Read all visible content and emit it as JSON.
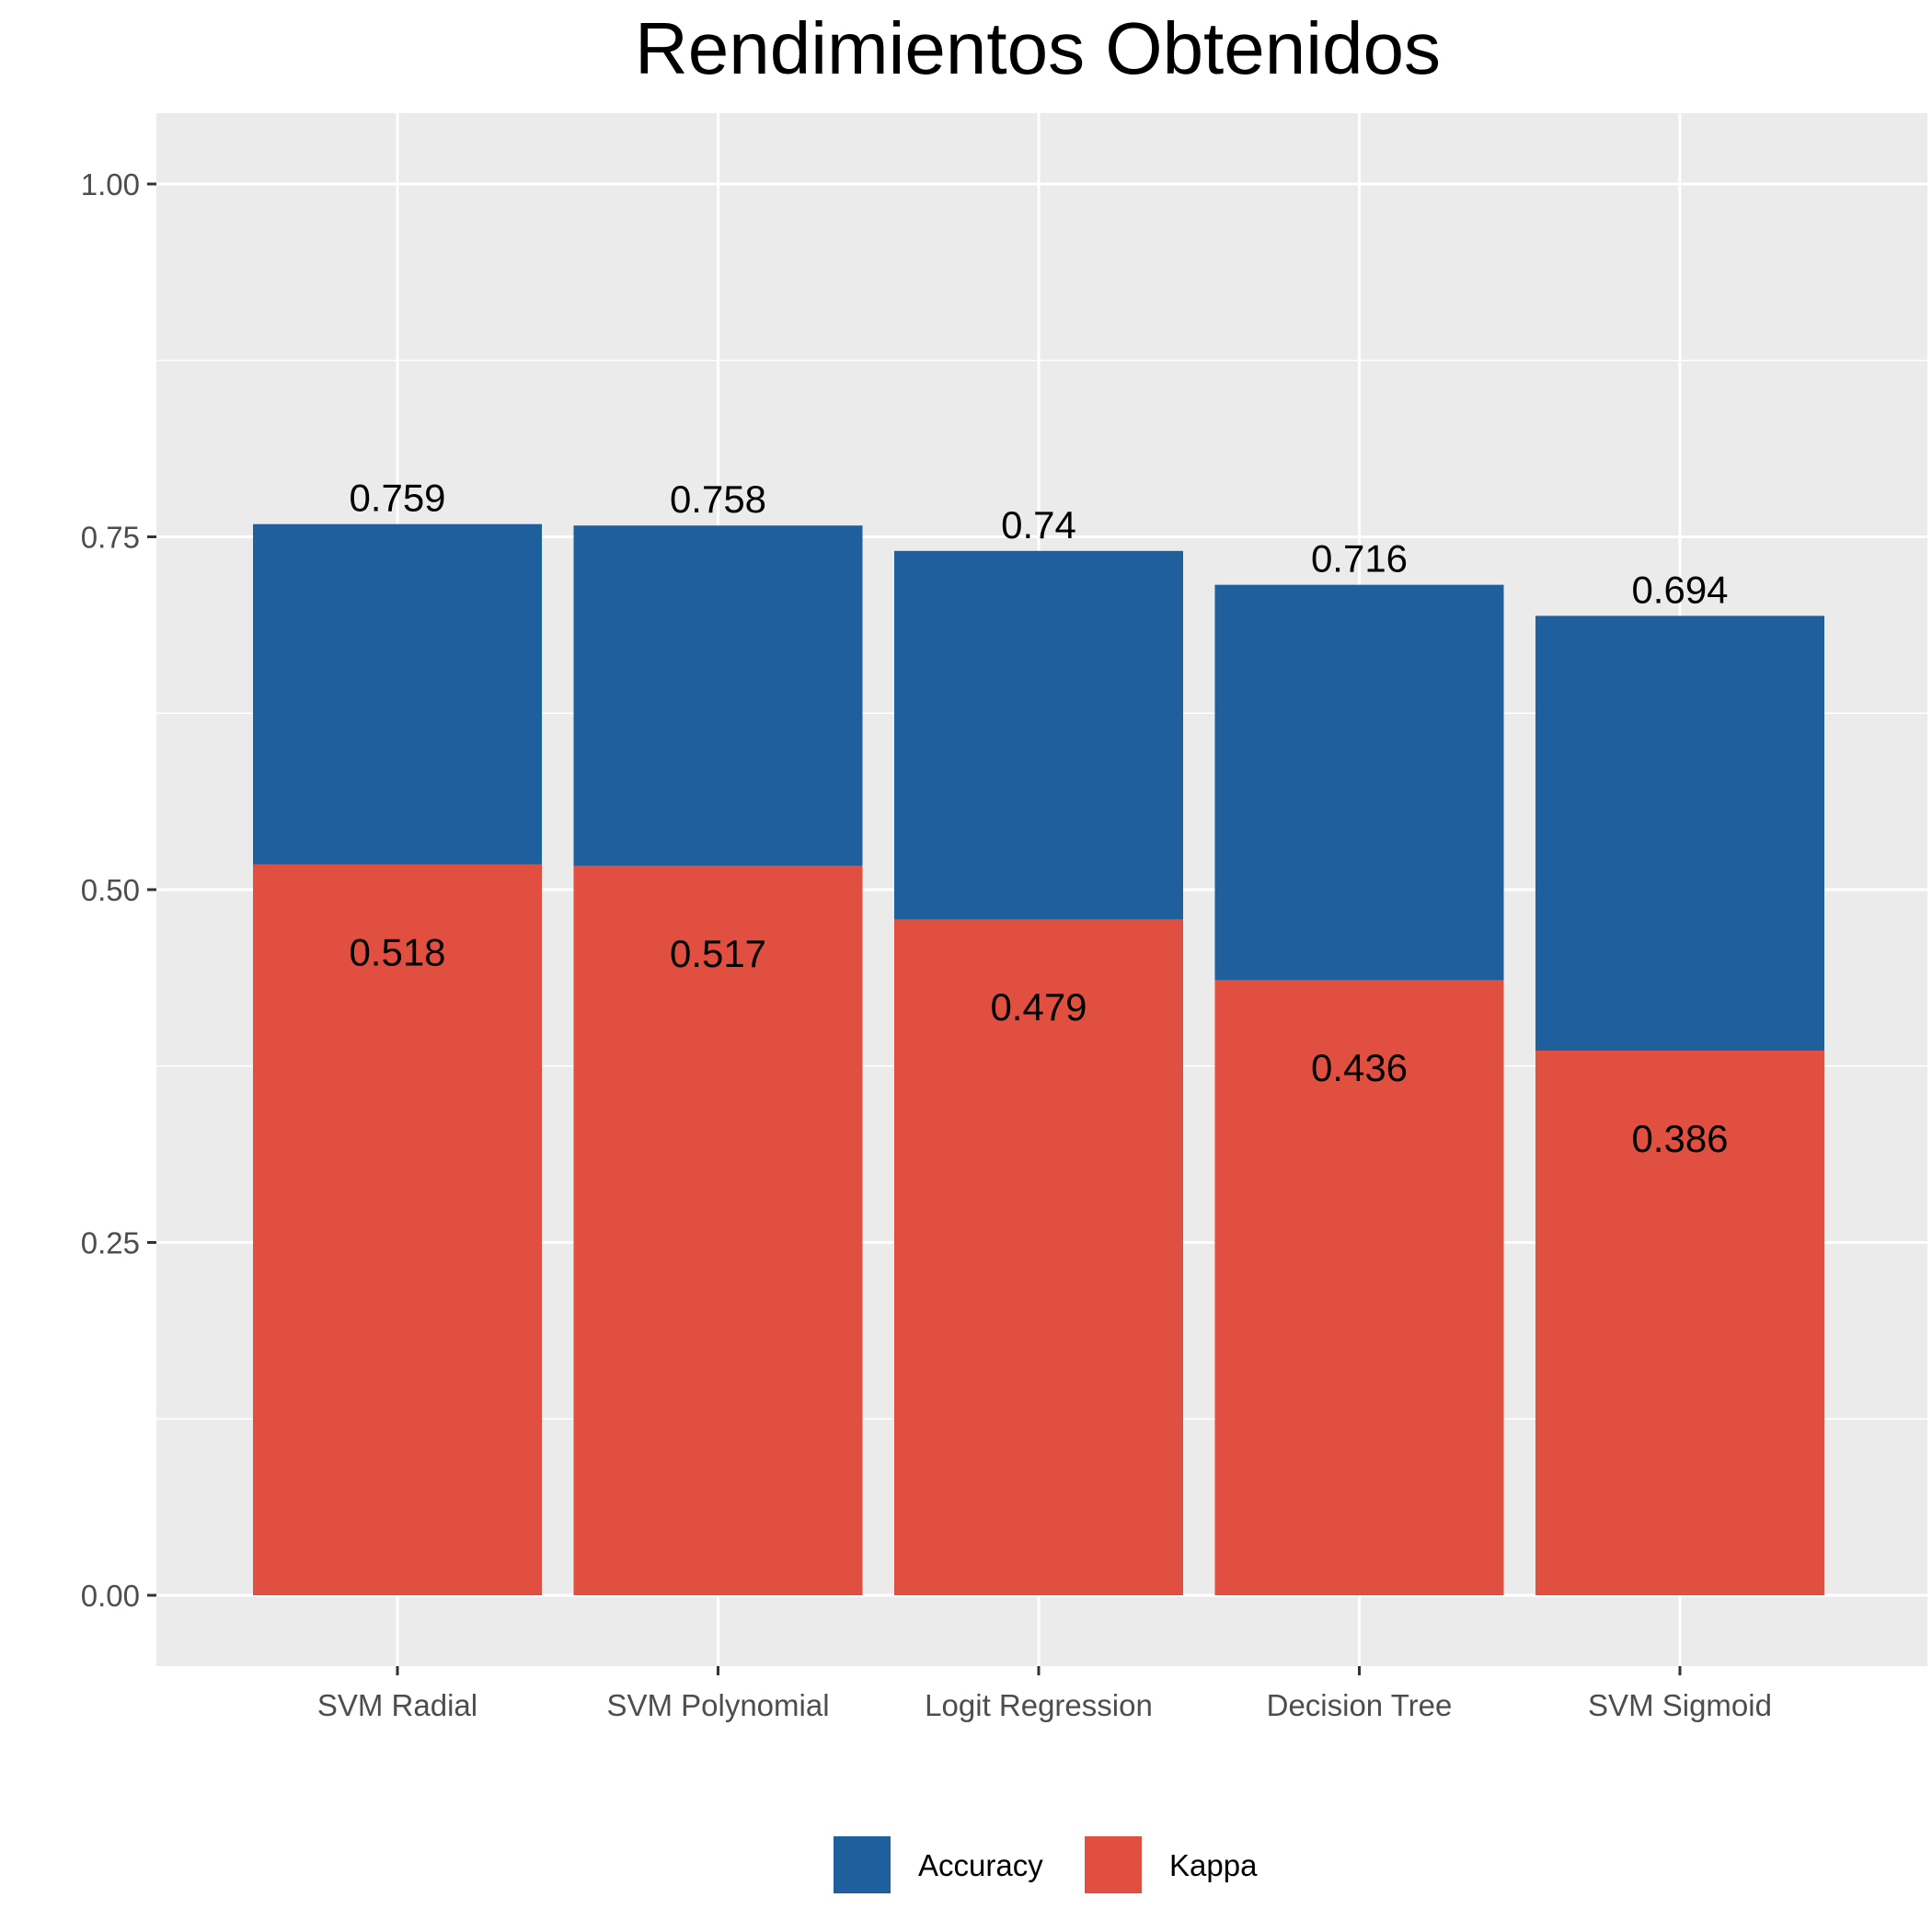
{
  "chart_data": {
    "type": "bar",
    "title": "Rendimientos Obtenidos",
    "xlabel": "",
    "ylabel": "",
    "ylim": [
      -0.1,
      1.05
    ],
    "yticks": [
      0.0,
      0.25,
      0.5,
      0.75,
      1.0
    ],
    "ytick_labels": [
      "0.00",
      "0.25",
      "0.50",
      "0.75",
      "1.00"
    ],
    "categories": [
      "SVM Radial",
      "SVM Polynomial",
      "Logit Regression",
      "Decision Tree",
      "SVM Sigmoid"
    ],
    "series": [
      {
        "name": "Accuracy",
        "color": "#1f5f9e",
        "values": [
          0.759,
          0.758,
          0.74,
          0.716,
          0.694
        ],
        "labels": [
          "0.759",
          "0.758",
          "0.74",
          "0.716",
          "0.694"
        ]
      },
      {
        "name": "Kappa",
        "color": "#e04f3f",
        "values": [
          0.518,
          0.517,
          0.479,
          0.436,
          0.386
        ],
        "labels": [
          "0.518",
          "0.517",
          "0.479",
          "0.436",
          "0.386"
        ]
      }
    ],
    "overlay": true,
    "grid": true,
    "legend_position": "bottom",
    "panel_background": "#ebebeb"
  }
}
